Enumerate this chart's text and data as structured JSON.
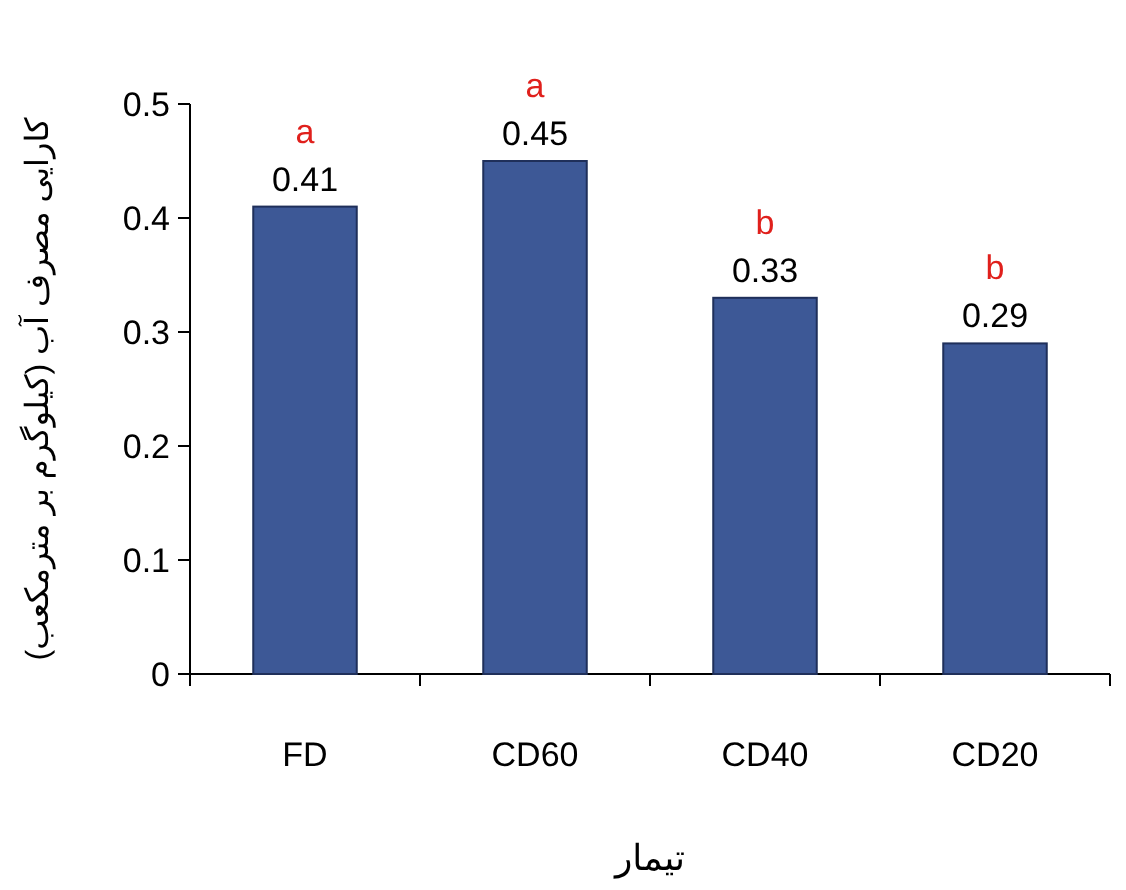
{
  "chart_data": {
    "type": "bar",
    "xlabel": "تیمار",
    "ylabel": "کارایی مصرف آب (کیلوگرم بر مترمکعب)",
    "categories": [
      "FD",
      "CD60",
      "CD40",
      "CD20"
    ],
    "values": [
      0.41,
      0.45,
      0.33,
      0.29
    ],
    "color": "#3d5896",
    "ylim": [
      0,
      0.5
    ],
    "yticks": [
      0,
      0.1,
      0.2,
      0.3,
      0.4,
      0.5
    ],
    "data_labels": true,
    "annotations": [
      {
        "text": "a",
        "x": "FD",
        "y": 0.41
      },
      {
        "text": "a",
        "x": "CD60",
        "y": 0.45
      },
      {
        "text": "b",
        "x": "CD40",
        "y": 0.33
      },
      {
        "text": "b",
        "x": "CD20",
        "y": 0.29
      }
    ]
  }
}
